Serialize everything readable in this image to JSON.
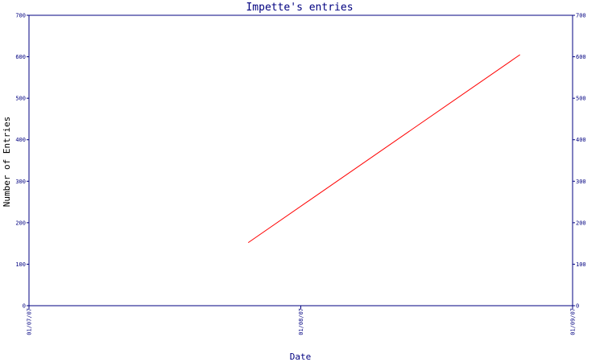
{
  "chart_data": {
    "type": "line",
    "title": "Impette's entries",
    "xlabel": "Date",
    "ylabel": "Number of Entries",
    "x_ticks": [
      "01/07/07",
      "01/08/07",
      "01/09/07"
    ],
    "y_ticks": [
      0,
      100,
      200,
      300,
      400,
      500,
      600,
      700
    ],
    "ylim": [
      0,
      700
    ],
    "xlim": [
      "01/07/07",
      "01/09/07"
    ],
    "grid": false,
    "legend": "none",
    "series": [
      {
        "x": [
          "2007-07-26",
          "2007-08-26"
        ],
        "values": [
          152,
          605
        ],
        "color": "#ff0000"
      }
    ],
    "axis_color": "#000080",
    "background": "#ffffff"
  }
}
